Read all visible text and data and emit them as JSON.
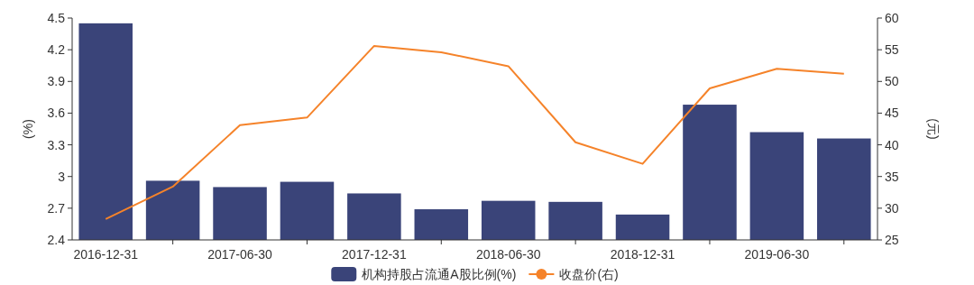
{
  "chart_data": {
    "type": "bar",
    "categories": [
      "2016-12-31",
      null,
      "2017-06-30",
      null,
      "2017-12-31",
      null,
      "2018-06-30",
      null,
      "2018-12-31",
      null,
      "2019-06-30",
      null
    ],
    "series": [
      {
        "name": "机构持股占流通A股比例(%)",
        "color": "#3a4479",
        "values": [
          4.45,
          2.96,
          2.9,
          2.95,
          2.84,
          2.69,
          2.77,
          2.76,
          2.64,
          3.68,
          3.42,
          3.36
        ]
      },
      {
        "name": "收盘价(右)",
        "type": "line",
        "axis": "y2",
        "color": "#f5832a",
        "values": [
          28.3,
          33.4,
          43.1,
          44.3,
          55.6,
          54.6,
          52.4,
          40.4,
          37.0,
          48.9,
          52.0,
          51.2
        ]
      }
    ],
    "ylabel": "(%)",
    "y2label": "(元)",
    "ylim": [
      2.4,
      4.5
    ],
    "yticks": [
      2.4,
      2.7,
      3,
      3.3,
      3.6,
      3.9,
      4.2,
      4.5
    ],
    "y2lim": [
      25,
      60
    ],
    "y2ticks": [
      25,
      30,
      35,
      40,
      45,
      50,
      55,
      60
    ],
    "legend": "bottom",
    "grid": false
  }
}
